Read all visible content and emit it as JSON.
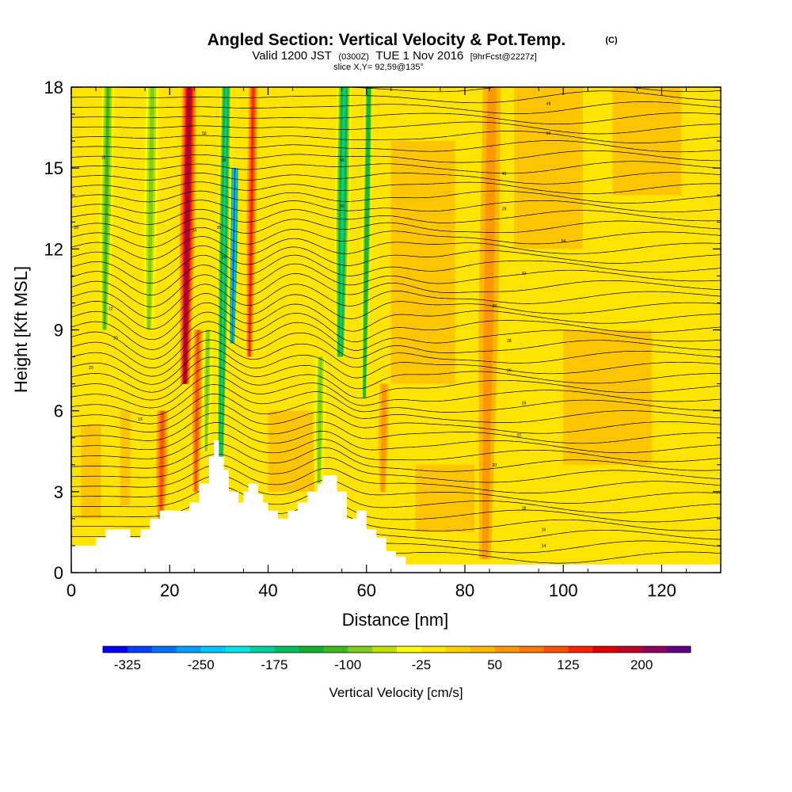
{
  "chart_data": {
    "type": "heatmap",
    "title": "Angled Section: Vertical Velocity & Pot.Temp.",
    "title_unit": "(C)",
    "subtitle": {
      "prefix": "Valid 1200 JST",
      "utc": "(0300Z)",
      "date": "TUE 1 Nov 2016",
      "fcst": "[9hrFcst@2227z]"
    },
    "slice_info": "slice X,Y= 92,59@135°",
    "xlabel": "Distance [nm]",
    "ylabel": "Height [Kft MSL]",
    "xlim": [
      0,
      132
    ],
    "ylim": [
      0,
      18
    ],
    "x_ticks": [
      0,
      20,
      40,
      60,
      80,
      100,
      120
    ],
    "y_ticks": [
      0,
      3,
      6,
      9,
      12,
      15,
      18
    ],
    "colorbar": {
      "title": "Vertical Velocity [cm/s]",
      "range": [
        -350,
        250
      ],
      "step": 25,
      "tick_values": [
        -325,
        -250,
        -175,
        -100,
        -25,
        50,
        125,
        200
      ],
      "colors": [
        "#0000ff",
        "#0040ff",
        "#0070ff",
        "#00a0ff",
        "#00c8ff",
        "#00e5e5",
        "#00d0a0",
        "#00c060",
        "#10b030",
        "#40b820",
        "#80cc20",
        "#c0e000",
        "#ffff00",
        "#ffe800",
        "#ffd000",
        "#ffb800",
        "#ff9800",
        "#ff7800",
        "#ff5000",
        "#ff2000",
        "#e00000",
        "#c00020",
        "#900060",
        "#600080"
      ]
    },
    "velocity_features": [
      {
        "x": 23.5,
        "value": 200,
        "width": 1.6,
        "ybot": 7.0,
        "ytop": 18
      },
      {
        "x": 33.0,
        "value": -325,
        "width": 1.0,
        "ybot": 8.5,
        "ytop": 15
      },
      {
        "x": 31.0,
        "value": -200,
        "width": 1.4,
        "ybot": 4.0,
        "ytop": 18
      },
      {
        "x": 36.5,
        "value": 140,
        "width": 1.0,
        "ybot": 8.0,
        "ytop": 18
      },
      {
        "x": 7.0,
        "value": -125,
        "width": 1.6,
        "ybot": 9.0,
        "ytop": 18
      },
      {
        "x": 16.0,
        "value": -110,
        "width": 1.8,
        "ybot": 9.0,
        "ytop": 18
      },
      {
        "x": 55.0,
        "value": -200,
        "width": 1.7,
        "ybot": 8.0,
        "ytop": 18
      },
      {
        "x": 60.0,
        "value": -175,
        "width": 1.0,
        "ybot": 6.5,
        "ytop": 18
      },
      {
        "x": 51.0,
        "value": -100,
        "width": 1.4,
        "ybot": 3.0,
        "ytop": 8
      },
      {
        "x": 28.0,
        "value": -100,
        "width": 1.2,
        "ybot": 4.5,
        "ytop": 9
      },
      {
        "x": 19.0,
        "value": 100,
        "width": 1.2,
        "ybot": 2.0,
        "ytop": 6
      },
      {
        "x": 26.0,
        "value": 100,
        "width": 1.0,
        "ybot": 3.0,
        "ytop": 9
      },
      {
        "x": 85.0,
        "value": 50,
        "width": 2.0,
        "ybot": 0.5,
        "ytop": 18
      },
      {
        "x": 64.0,
        "value": 50,
        "width": 1.0,
        "ybot": 3.0,
        "ytop": 7
      }
    ],
    "terrain": [
      [
        0,
        1.0
      ],
      [
        5,
        1.0
      ],
      [
        5,
        1.3
      ],
      [
        7,
        1.3
      ],
      [
        7,
        1.6
      ],
      [
        12,
        1.6
      ],
      [
        12,
        1.3
      ],
      [
        14,
        1.3
      ],
      [
        14,
        1.6
      ],
      [
        16,
        1.6
      ],
      [
        16,
        2.0
      ],
      [
        18,
        2.0
      ],
      [
        18,
        2.3
      ],
      [
        24,
        2.3
      ],
      [
        24,
        2.6
      ],
      [
        26,
        2.6
      ],
      [
        26,
        3.3
      ],
      [
        28,
        3.3
      ],
      [
        28,
        4.3
      ],
      [
        29,
        4.3
      ],
      [
        29,
        4.9
      ],
      [
        30,
        4.9
      ],
      [
        30,
        4.3
      ],
      [
        31,
        4.3
      ],
      [
        31,
        3.8
      ],
      [
        32,
        3.8
      ],
      [
        32,
        3.0
      ],
      [
        34,
        3.0
      ],
      [
        34,
        2.6
      ],
      [
        35,
        2.6
      ],
      [
        35,
        3.0
      ],
      [
        36,
        3.0
      ],
      [
        36,
        3.3
      ],
      [
        38,
        3.3
      ],
      [
        38,
        2.9
      ],
      [
        39,
        2.9
      ],
      [
        39,
        2.6
      ],
      [
        40,
        2.6
      ],
      [
        40,
        2.3
      ],
      [
        42,
        2.3
      ],
      [
        42,
        2.0
      ],
      [
        44,
        2.0
      ],
      [
        44,
        2.3
      ],
      [
        46,
        2.3
      ],
      [
        46,
        2.6
      ],
      [
        48,
        2.6
      ],
      [
        48,
        3.0
      ],
      [
        50,
        3.0
      ],
      [
        50,
        3.3
      ],
      [
        51,
        3.3
      ],
      [
        51,
        3.6
      ],
      [
        54,
        3.6
      ],
      [
        54,
        3.0
      ],
      [
        56,
        3.0
      ],
      [
        56,
        2.0
      ],
      [
        58,
        2.0
      ],
      [
        58,
        2.3
      ],
      [
        60,
        2.3
      ],
      [
        60,
        1.6
      ],
      [
        62,
        1.6
      ],
      [
        62,
        1.3
      ],
      [
        64,
        1.3
      ],
      [
        64,
        0.8
      ],
      [
        66,
        0.8
      ],
      [
        66,
        0.6
      ],
      [
        68,
        0.6
      ],
      [
        68,
        0.3
      ],
      [
        132,
        0.3
      ]
    ],
    "theta_labels": [
      {
        "text": "15",
        "x": 6.5,
        "y": 15.4
      },
      {
        "text": "50",
        "x": 27.0,
        "y": 16.3
      },
      {
        "text": "38",
        "x": 31.0,
        "y": 15.3
      },
      {
        "text": "50",
        "x": 55.0,
        "y": 15.3
      },
      {
        "text": "48",
        "x": 97.0,
        "y": 17.4
      },
      {
        "text": "50",
        "x": 97.0,
        "y": 16.3
      },
      {
        "text": "46",
        "x": 88.0,
        "y": 14.8
      },
      {
        "text": "28",
        "x": 1.0,
        "y": 12.8
      },
      {
        "text": "36",
        "x": 30.0,
        "y": 12.8
      },
      {
        "text": "30",
        "x": 55.0,
        "y": 13.6
      },
      {
        "text": "29",
        "x": 88.0,
        "y": 13.5
      },
      {
        "text": "34",
        "x": 100.0,
        "y": 12.3
      },
      {
        "text": "24",
        "x": 25.0,
        "y": 12.7
      },
      {
        "text": "20",
        "x": 31.0,
        "y": 11.7
      },
      {
        "text": "32",
        "x": 92.0,
        "y": 11.1
      },
      {
        "text": "30",
        "x": 86.0,
        "y": 9.9
      },
      {
        "text": "22",
        "x": 8.0,
        "y": 9.8
      },
      {
        "text": "20",
        "x": 9.0,
        "y": 8.7
      },
      {
        "text": "28",
        "x": 89.0,
        "y": 8.6
      },
      {
        "text": "26",
        "x": 89.0,
        "y": 7.5
      },
      {
        "text": "20",
        "x": 4.0,
        "y": 7.6
      },
      {
        "text": "24",
        "x": 92.0,
        "y": 6.3
      },
      {
        "text": "22",
        "x": 91.0,
        "y": 5.1
      },
      {
        "text": "16",
        "x": 14.0,
        "y": 5.7
      },
      {
        "text": "20",
        "x": 86.0,
        "y": 4.0
      },
      {
        "text": "18",
        "x": 92.0,
        "y": 2.4
      },
      {
        "text": "16",
        "x": 96.0,
        "y": 1.6
      },
      {
        "text": "14",
        "x": 96.0,
        "y": 1.0
      }
    ]
  }
}
